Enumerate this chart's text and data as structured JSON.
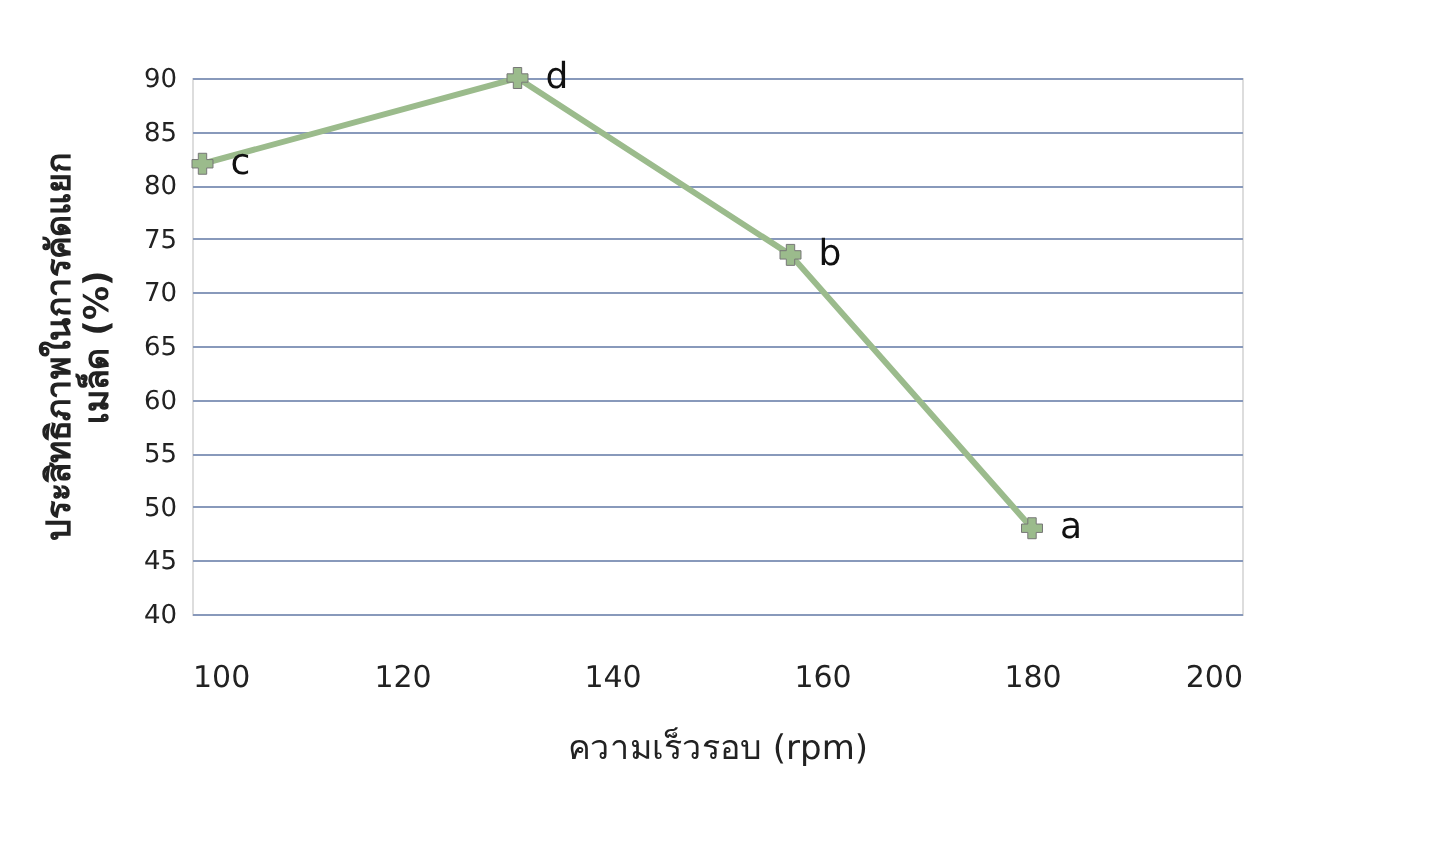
{
  "chart_data": {
    "type": "line",
    "xlabel": "ความเร็วรอบ (rpm)",
    "ylabel": [
      "ประสิทธิภาพในการคัดแยก",
      "เมล็ด (%)"
    ],
    "x": [
      101,
      131,
      157,
      180
    ],
    "series": [
      {
        "color": "#9bbb8c",
        "values": [
          82,
          90,
          73.5,
          48
        ]
      }
    ],
    "xlim": [
      100,
      200
    ],
    "xticks": [
      100,
      120,
      140,
      160,
      180,
      200
    ],
    "ylim": [
      40,
      90
    ],
    "yticks": [
      40,
      45,
      50,
      55,
      60,
      65,
      70,
      75,
      80,
      85,
      90
    ],
    "grid": "y",
    "marker": "cross",
    "line_style": "solid",
    "annotations": [
      {
        "text": "c",
        "x": 101,
        "y": 82
      },
      {
        "text": "d",
        "x": 131,
        "y": 90
      },
      {
        "text": "b",
        "x": 157,
        "y": 73.5
      },
      {
        "text": "a",
        "x": 180,
        "y": 48
      }
    ]
  }
}
